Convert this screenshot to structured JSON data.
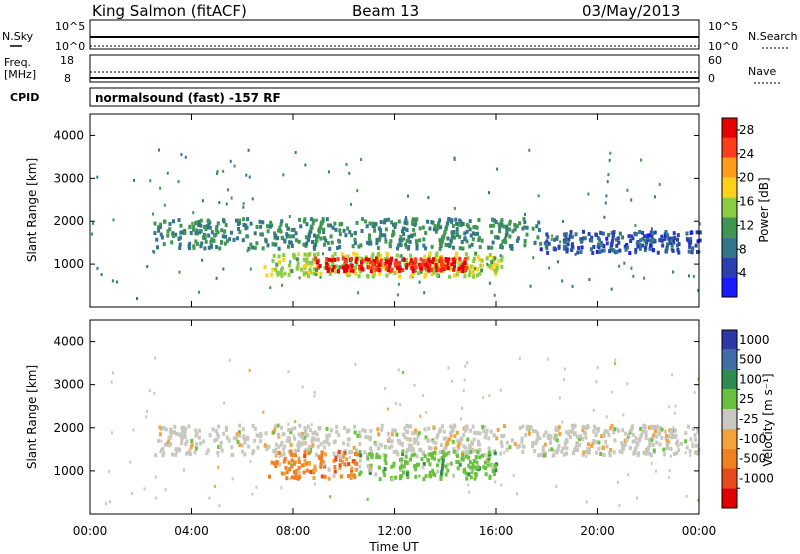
{
  "header": {
    "station": "King Salmon (fitACF)",
    "beam": "Beam 13",
    "date": "03/May/2013"
  },
  "top_strips": {
    "left_label_1": "N.Sky",
    "left_tick_hi_1": "10^5",
    "left_tick_lo_1": "10^0",
    "right_label_1": "N.Search",
    "right_tick_hi_1": "10^5",
    "right_tick_lo_1": "10^0",
    "left_label_2a": "Freq.",
    "left_label_2b": "[MHz]",
    "left_tick_hi_2": "18",
    "left_tick_lo_2": "8",
    "right_label_2": "Nave",
    "right_tick_hi_2": "60",
    "right_tick_lo_2": "0",
    "cpid_label": "CPID",
    "cpid_value": "normalsound (fast) -157 RF"
  },
  "chart_data": [
    {
      "type": "heatmap",
      "title": "",
      "xlabel": "",
      "ylabel": "Slant Range [km]",
      "xlim": [
        0,
        24
      ],
      "ylim": [
        0,
        4500
      ],
      "yticks": [
        1000,
        2000,
        3000,
        4000
      ],
      "ytick_labels": [
        "1000",
        "2000",
        "3000",
        "4000"
      ],
      "colorbar": {
        "label": "Power [dB]",
        "range": [
          0,
          30
        ],
        "ticks": [
          4,
          8,
          12,
          16,
          20,
          24,
          28
        ],
        "colors": [
          "#1a1aff",
          "#2a3fb0",
          "#33758a",
          "#3f9650",
          "#8acc44",
          "#ffd21a",
          "#ff9c1a",
          "#ff3d1a",
          "#e60000"
        ]
      },
      "echo_regions": [
        {
          "start_hour": 2.5,
          "end_hour": 17.7,
          "range_min_km": 1400,
          "range_max_km": 2100,
          "level": 10
        },
        {
          "start_hour": 17.7,
          "end_hour": 24.0,
          "range_min_km": 1300,
          "range_max_km": 1800,
          "level": 6
        },
        {
          "start_hour": 6.8,
          "end_hour": 16.2,
          "range_min_km": 750,
          "range_max_km": 1300,
          "level": 16
        },
        {
          "start_hour": 8.8,
          "end_hour": 14.8,
          "range_min_km": 880,
          "range_max_km": 1180,
          "level": 27
        }
      ]
    },
    {
      "type": "heatmap",
      "title": "",
      "xlabel": "Time UT",
      "ylabel": "Slant Range [km]",
      "xlim": [
        0,
        24
      ],
      "ylim": [
        0,
        4500
      ],
      "xticks": [
        0,
        4,
        8,
        12,
        16,
        20,
        24
      ],
      "xtick_labels": [
        "00:00",
        "04:00",
        "08:00",
        "12:00",
        "16:00",
        "20:00",
        "00:00"
      ],
      "yticks": [
        1000,
        2000,
        3000,
        4000
      ],
      "ytick_labels": [
        "1000",
        "2000",
        "3000",
        "4000"
      ],
      "colorbar": {
        "label": "Velocity [m s⁻¹]",
        "tick_labels": [
          "1000",
          "500",
          "100",
          "25",
          "-25",
          "-100",
          "-500",
          "-1000"
        ],
        "colors": [
          "#2c37a8",
          "#3d6fa6",
          "#2f8c50",
          "#6ac23c",
          "#c8c8c0",
          "#f2a33a",
          "#f08020",
          "#e84a1c",
          "#e00000"
        ]
      },
      "echo_regions": [
        {
          "start_hour": 2.5,
          "end_hour": 24.0,
          "range_min_km": 1400,
          "range_max_km": 2100,
          "velocity_class": "gray"
        },
        {
          "start_hour": 7.0,
          "end_hour": 10.5,
          "range_min_km": 850,
          "range_max_km": 1500,
          "velocity_class": "orange"
        },
        {
          "start_hour": 10.5,
          "end_hour": 16.0,
          "range_min_km": 850,
          "range_max_km": 1500,
          "velocity_class": "green"
        }
      ]
    }
  ]
}
